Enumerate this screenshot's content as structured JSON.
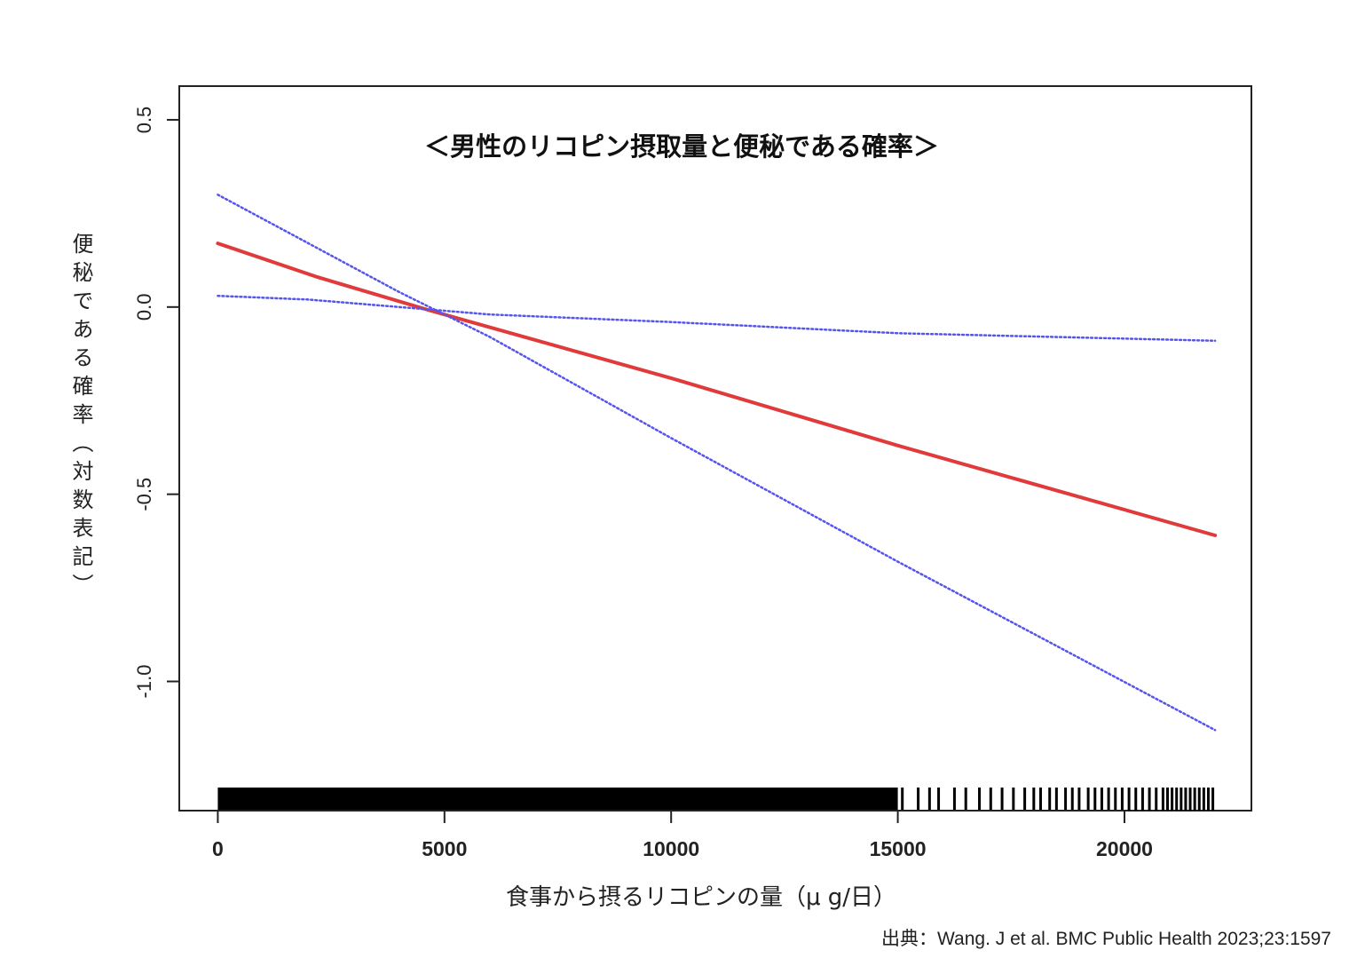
{
  "chart_data": {
    "type": "line",
    "title": "＜男性のリコピン摂取量と便秘である確率＞",
    "xlabel": "食事から摂るリコピンの量（μ g/日）",
    "ylabel": "便秘である確率（対数表記）",
    "xlim": [
      -850,
      22800
    ],
    "ylim": [
      -1.345,
      0.59
    ],
    "x_ticks": [
      0,
      5000,
      10000,
      15000,
      20000
    ],
    "x_tick_labels": [
      "0",
      "5000",
      "10000",
      "15000",
      "20000"
    ],
    "y_ticks": [
      0.5,
      0.0,
      -0.5,
      -1.0
    ],
    "y_tick_labels": [
      "0.5",
      "0.0",
      "-0.5",
      "-1.0"
    ],
    "grid": false,
    "series": [
      {
        "role": "estimate",
        "color": "#e03a3a",
        "style": "solid",
        "x": [
          0,
          2200,
          4700,
          10000,
          15000,
          22000
        ],
        "y": [
          0.17,
          0.08,
          -0.01,
          -0.19,
          -0.37,
          -0.61
        ]
      },
      {
        "role": "upper-ci",
        "color": "#5555ee",
        "style": "dotted",
        "x": [
          0,
          2000,
          4000,
          6000,
          10000,
          15000,
          22000
        ],
        "y": [
          0.03,
          0.02,
          0.0,
          -0.02,
          -0.04,
          -0.07,
          -0.09
        ]
      },
      {
        "role": "lower-ci",
        "color": "#5555ee",
        "style": "dotted",
        "x": [
          0,
          2000,
          4000,
          6000,
          10000,
          15000,
          22000
        ],
        "y": [
          0.3,
          0.17,
          0.04,
          -0.08,
          -0.35,
          -0.68,
          -1.13
        ]
      }
    ],
    "rug_note": "observations dense from 0 to ~15000, sparse thereafter up to ~22000",
    "rug_dense_range": [
      0,
      15000
    ],
    "rug_sparse_x": [
      15100,
      15450,
      15700,
      15900,
      16250,
      16500,
      16800,
      17050,
      17300,
      17550,
      17800,
      18000,
      18150,
      18350,
      18500,
      18700,
      18850,
      19000,
      19200,
      19350,
      19500,
      19650,
      19800,
      19950,
      20100,
      20250,
      20400,
      20550,
      20700,
      20850,
      20950,
      21050,
      21150,
      21250,
      21350,
      21450,
      21550,
      21650,
      21750,
      21850,
      21950
    ]
  },
  "source": "出典：Wang. J et al. BMC Public Health 2023;23:1597"
}
